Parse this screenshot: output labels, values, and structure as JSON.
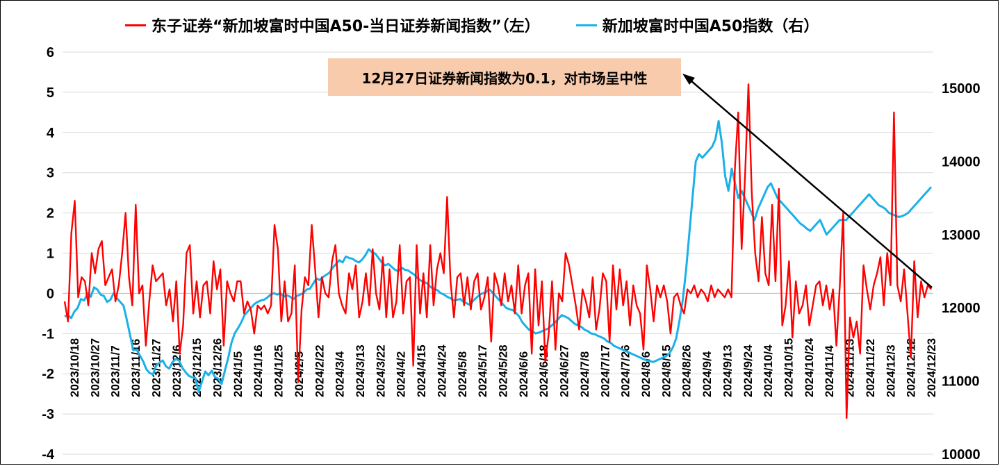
{
  "chart_data": {
    "type": "line",
    "title": "",
    "legend": [
      {
        "label": "东子证券“新加坡富时中国A50-当日证券新闻指数”（左）",
        "color": "#ff0000",
        "axis": "left"
      },
      {
        "label": "新加坡富时中国A50指数（右）",
        "color": "#1ab0e8",
        "axis": "right"
      }
    ],
    "legend_placement": "top",
    "annotation": "12月27日证券新闻指数为0.1，对市场呈中性",
    "y_left": {
      "min": -4,
      "max": 6,
      "ticks": [
        "6",
        "5",
        "4",
        "3",
        "2",
        "1",
        "0",
        "-1",
        "-2",
        "-3",
        "-4"
      ]
    },
    "y_right": {
      "min": 10000,
      "max": 15000,
      "ticks": [
        "15000",
        "14000",
        "13000",
        "12000",
        "11000",
        "10000"
      ]
    },
    "x_labels": [
      "2023/10/18",
      "2023/10/27",
      "2023/11/7",
      "2023/11/16",
      "2023/11/27",
      "2023/12/6",
      "2023/12/15",
      "2023/12/26",
      "2024/1/5",
      "2024/1/16",
      "2024/1/25",
      "2024/2/5",
      "2024/2/22",
      "2024/3/4",
      "2024/3/13",
      "2024/3/22",
      "2024/4/2",
      "2024/4/15",
      "2024/4/24",
      "2024/5/8",
      "2024/5/17",
      "2024/5/28",
      "2024/6/6",
      "2024/6/18",
      "2024/6/27",
      "2024/7/8",
      "2024/7/17",
      "2024/7/26",
      "2024/8/6",
      "2024/8/15",
      "2024/8/26",
      "2024/9/4",
      "2024/9/13",
      "2024/9/24",
      "2024/10/4",
      "2024/10/15",
      "2024/10/24",
      "2024/11/4",
      "2024/11/13",
      "2024/11/22",
      "2024/12/3",
      "2024/12/12",
      "2024/12/23"
    ],
    "grid": true,
    "series": [
      {
        "name": "东子证券“新加坡富时中国A50-当日证券新闻指数”（左）",
        "axis": "left",
        "color": "#ff0000",
        "values": [
          -0.2,
          -0.7,
          1.5,
          2.3,
          -0.1,
          0.4,
          0.3,
          -0.3,
          1.0,
          0.5,
          1.1,
          1.3,
          0.2,
          0.4,
          0.6,
          -0.2,
          0.2,
          1.0,
          2.0,
          0.4,
          -0.3,
          2.2,
          0.0,
          0.2,
          -1.3,
          -0.2,
          0.7,
          0.3,
          0.4,
          0.5,
          -0.3,
          0.1,
          -0.7,
          0.3,
          -1.5,
          -0.8,
          1.0,
          1.2,
          -0.5,
          0.3,
          -0.6,
          0.2,
          0.3,
          -0.5,
          0.8,
          0.1,
          0.6,
          -1.3,
          0.3,
          0.0,
          -0.2,
          0.3,
          0.3,
          -0.5,
          -0.2,
          -0.4,
          -1.0,
          -0.3,
          -0.4,
          -0.3,
          -0.5,
          -0.3,
          1.7,
          1.1,
          -0.7,
          0.3,
          -0.7,
          -0.5,
          0.7,
          -2.2,
          -0.4,
          0.4,
          0.2,
          1.7,
          0.6,
          -0.6,
          0.4,
          0.0,
          -0.1,
          0.8,
          1.2,
          0.0,
          -0.3,
          -0.5,
          0.5,
          0.1,
          0.7,
          -0.6,
          -0.2,
          0.5,
          -0.3,
          1.1,
          0.0,
          -0.4,
          0.9,
          -0.6,
          0.6,
          -0.6,
          -0.2,
          1.2,
          -0.5,
          0.3,
          0.4,
          -1.8,
          1.2,
          -0.5,
          0.5,
          -0.6,
          1.2,
          -0.3,
          0.6,
          1.0,
          0.5,
          2.4,
          0.3,
          -0.6,
          0.4,
          0.5,
          -0.3,
          0.4,
          -0.4,
          0.3,
          0.5,
          -0.4,
          -0.1,
          0.4,
          -1.2,
          0.5,
          0.2,
          -0.3,
          0.5,
          -0.2,
          0.2,
          -0.5,
          0.7,
          -0.5,
          0.2,
          0.5,
          -1.5,
          0.6,
          -0.8,
          0.3,
          -1.7,
          -1.0,
          0.3,
          -1.4,
          0.0,
          -0.2,
          1.0,
          0.7,
          0.2,
          -0.3,
          -0.9,
          0.1,
          -0.2,
          -0.6,
          0.4,
          -0.9,
          -0.4,
          0.5,
          0.3,
          -1.2,
          0.7,
          -0.4,
          0.6,
          -0.3,
          0.3,
          -0.8,
          0.2,
          -0.3,
          -0.5,
          -1.4,
          0.7,
          0.1,
          -0.7,
          0.2,
          -0.1,
          0.2,
          -0.2,
          -1.0,
          -0.1,
          0.0,
          -0.3,
          -0.5,
          0.1,
          0.0,
          0.2,
          -0.1,
          0.1,
          0.0,
          -0.2,
          0.2,
          -0.1,
          0.1,
          0.0,
          -0.1,
          0.1,
          -0.1,
          3.1,
          4.5,
          1.1,
          2.9,
          5.2,
          2.5,
          1.0,
          0.3,
          1.9,
          0.5,
          0.2,
          2.2,
          0.3,
          2.6,
          -0.8,
          -0.3,
          0.8,
          -1.1,
          0.3,
          -0.5,
          -0.3,
          0.2,
          -0.8,
          -0.3,
          0.2,
          0.3,
          -0.3,
          0.2,
          -0.4,
          0.1,
          -1.3,
          0.2,
          2.0,
          -3.1,
          -0.6,
          -1.1,
          -0.7,
          -1.5,
          0.7,
          0.1,
          -0.4,
          0.2,
          0.5,
          0.9,
          -0.3,
          1.0,
          0.2,
          4.5,
          0.2,
          -0.2,
          0.6,
          -0.5,
          -1.6,
          0.8,
          -0.6,
          0.3,
          -0.1,
          0.2,
          0.1
        ]
      },
      {
        "name": "新加坡富时中国A50指数（右）",
        "axis": "right",
        "color": "#1ab0e8",
        "values": [
          11880,
          11900,
          11860,
          11950,
          12000,
          12120,
          12100,
          12200,
          12150,
          12280,
          12250,
          12180,
          12160,
          12080,
          12110,
          12200,
          12130,
          12080,
          12030,
          11840,
          11630,
          11420,
          11430,
          11350,
          11270,
          11160,
          11110,
          11090,
          11210,
          11250,
          11280,
          11200,
          11170,
          11260,
          11300,
          11280,
          11180,
          11120,
          11070,
          11050,
          11040,
          10850,
          10990,
          11130,
          11080,
          11140,
          11050,
          11030,
          10960,
          11140,
          11310,
          11520,
          11650,
          11720,
          11800,
          11900,
          11950,
          12000,
          12050,
          12080,
          12100,
          12110,
          12140,
          12180,
          12200,
          12180,
          12200,
          12150,
          12170,
          12150,
          12120,
          12160,
          12180,
          12200,
          12250,
          12260,
          12330,
          12400,
          12380,
          12420,
          12450,
          12480,
          12550,
          12600,
          12650,
          12620,
          12700,
          12680,
          12670,
          12640,
          12620,
          12660,
          12720,
          12800,
          12760,
          12740,
          12680,
          12620,
          12580,
          12600,
          12560,
          12520,
          12500,
          12550,
          12520,
          12510,
          12480,
          12450,
          12400,
          12370,
          12350,
          12330,
          12280,
          12260,
          12240,
          12200,
          12180,
          12150,
          12130,
          12100,
          12110,
          12120,
          12080,
          12060,
          12040,
          12100,
          12140,
          12180,
          12200,
          12220,
          12250,
          12200,
          12150,
          12100,
          12050,
          12000,
          11980,
          11970,
          11930,
          11880,
          11800,
          11750,
          11700,
          11680,
          11650,
          11660,
          11680,
          11700,
          11720,
          11760,
          11800,
          11850,
          11900,
          11880,
          11860,
          11820,
          11780,
          11760,
          11740,
          11700,
          11680,
          11650,
          11640,
          11620,
          11600,
          11580,
          11540,
          11520,
          11480,
          11460,
          11440,
          11420,
          11400,
          11380,
          11360,
          11340,
          11320,
          11300,
          11280,
          11270,
          11260,
          11280,
          11300,
          11320,
          11340,
          11380,
          11460,
          11580,
          11820,
          12100,
          12500,
          13000,
          13500,
          14000,
          14100,
          14050,
          14100,
          14150,
          14200,
          14300,
          14550,
          14250,
          13800,
          13600,
          13900,
          13700,
          13500,
          13600,
          13500,
          13400,
          13300,
          13200,
          13350,
          13450,
          13550,
          13650,
          13700,
          13600,
          13500,
          13450,
          13400,
          13350,
          13300,
          13250,
          13200,
          13150,
          13120,
          13080,
          13050,
          13100,
          13150,
          13200,
          13100,
          13000,
          13050,
          13100,
          13150,
          13200,
          13200,
          13200,
          13250,
          13300,
          13350,
          13400,
          13450,
          13500,
          13550,
          13500,
          13450,
          13400,
          13380,
          13350,
          13300,
          13280,
          13260,
          13240,
          13250,
          13270,
          13300,
          13350,
          13400,
          13450,
          13500,
          13550,
          13600,
          13650
        ]
      }
    ]
  }
}
